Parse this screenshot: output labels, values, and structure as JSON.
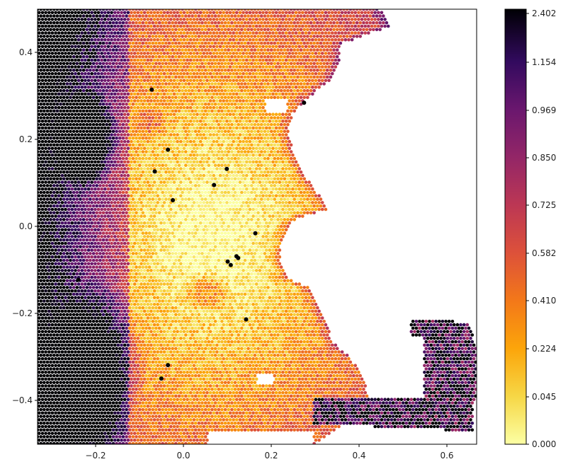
{
  "chart_data": {
    "type": "heatmap",
    "subtype": "hexbin map",
    "title": "",
    "xlabel": "",
    "ylabel": "",
    "xlim": [
      -0.33,
      0.67
    ],
    "ylim": [
      -0.5,
      0.5
    ],
    "x_ticks": [
      -0.2,
      0.0,
      0.2,
      0.4,
      0.6
    ],
    "x_tick_labels": [
      "−0.2",
      "0.0",
      "0.2",
      "0.4",
      "0.6"
    ],
    "y_ticks": [
      0.4,
      0.2,
      0.0,
      -0.2,
      -0.4
    ],
    "y_tick_labels": [
      "0.4",
      "0.2",
      "0.0",
      "−0.2",
      "−0.4"
    ],
    "colormap": "inferno_r",
    "colorbar": {
      "ticks": [
        "2.402",
        "1.154",
        "0.969",
        "0.850",
        "0.725",
        "0.582",
        "0.410",
        "0.224",
        "0.045",
        "0.000"
      ],
      "location": "right"
    },
    "points_xy": [
      [
        -0.07,
        0.315
      ],
      [
        0.277,
        0.285
      ],
      [
        -0.033,
        0.177
      ],
      [
        0.101,
        0.133
      ],
      [
        -0.063,
        0.127
      ],
      [
        0.072,
        0.096
      ],
      [
        -0.022,
        0.061
      ],
      [
        0.166,
        -0.015
      ],
      [
        0.123,
        -0.068
      ],
      [
        0.127,
        -0.072
      ],
      [
        0.103,
        -0.08
      ],
      [
        0.11,
        -0.088
      ],
      [
        -0.237,
        -0.122
      ],
      [
        0.145,
        -0.213
      ],
      [
        -0.033,
        -0.318
      ],
      [
        -0.048,
        -0.349
      ]
    ],
    "grid": false,
    "legend": "none"
  }
}
